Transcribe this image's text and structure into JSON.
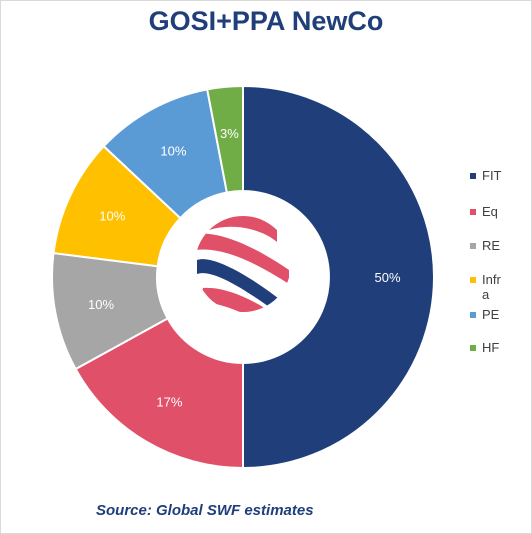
{
  "chart_data": {
    "type": "pie",
    "variant": "donut",
    "title": "GOSI+PPA NewCo",
    "categories": [
      "FIT",
      "Eq",
      "RE",
      "Infra",
      "PE",
      "HF"
    ],
    "values": [
      50,
      17,
      10,
      10,
      10,
      3
    ],
    "data_labels": [
      "50%",
      "17%",
      "10%",
      "10%",
      "10%",
      "3%"
    ],
    "colors": [
      "#1f3e7a",
      "#e05068",
      "#a6a6a6",
      "#ffc000",
      "#5b9bd5",
      "#70ad47"
    ],
    "legend_position": "right",
    "center_logo": "ribbon-logo-icon"
  },
  "source": "Source: Global SWF estimates"
}
